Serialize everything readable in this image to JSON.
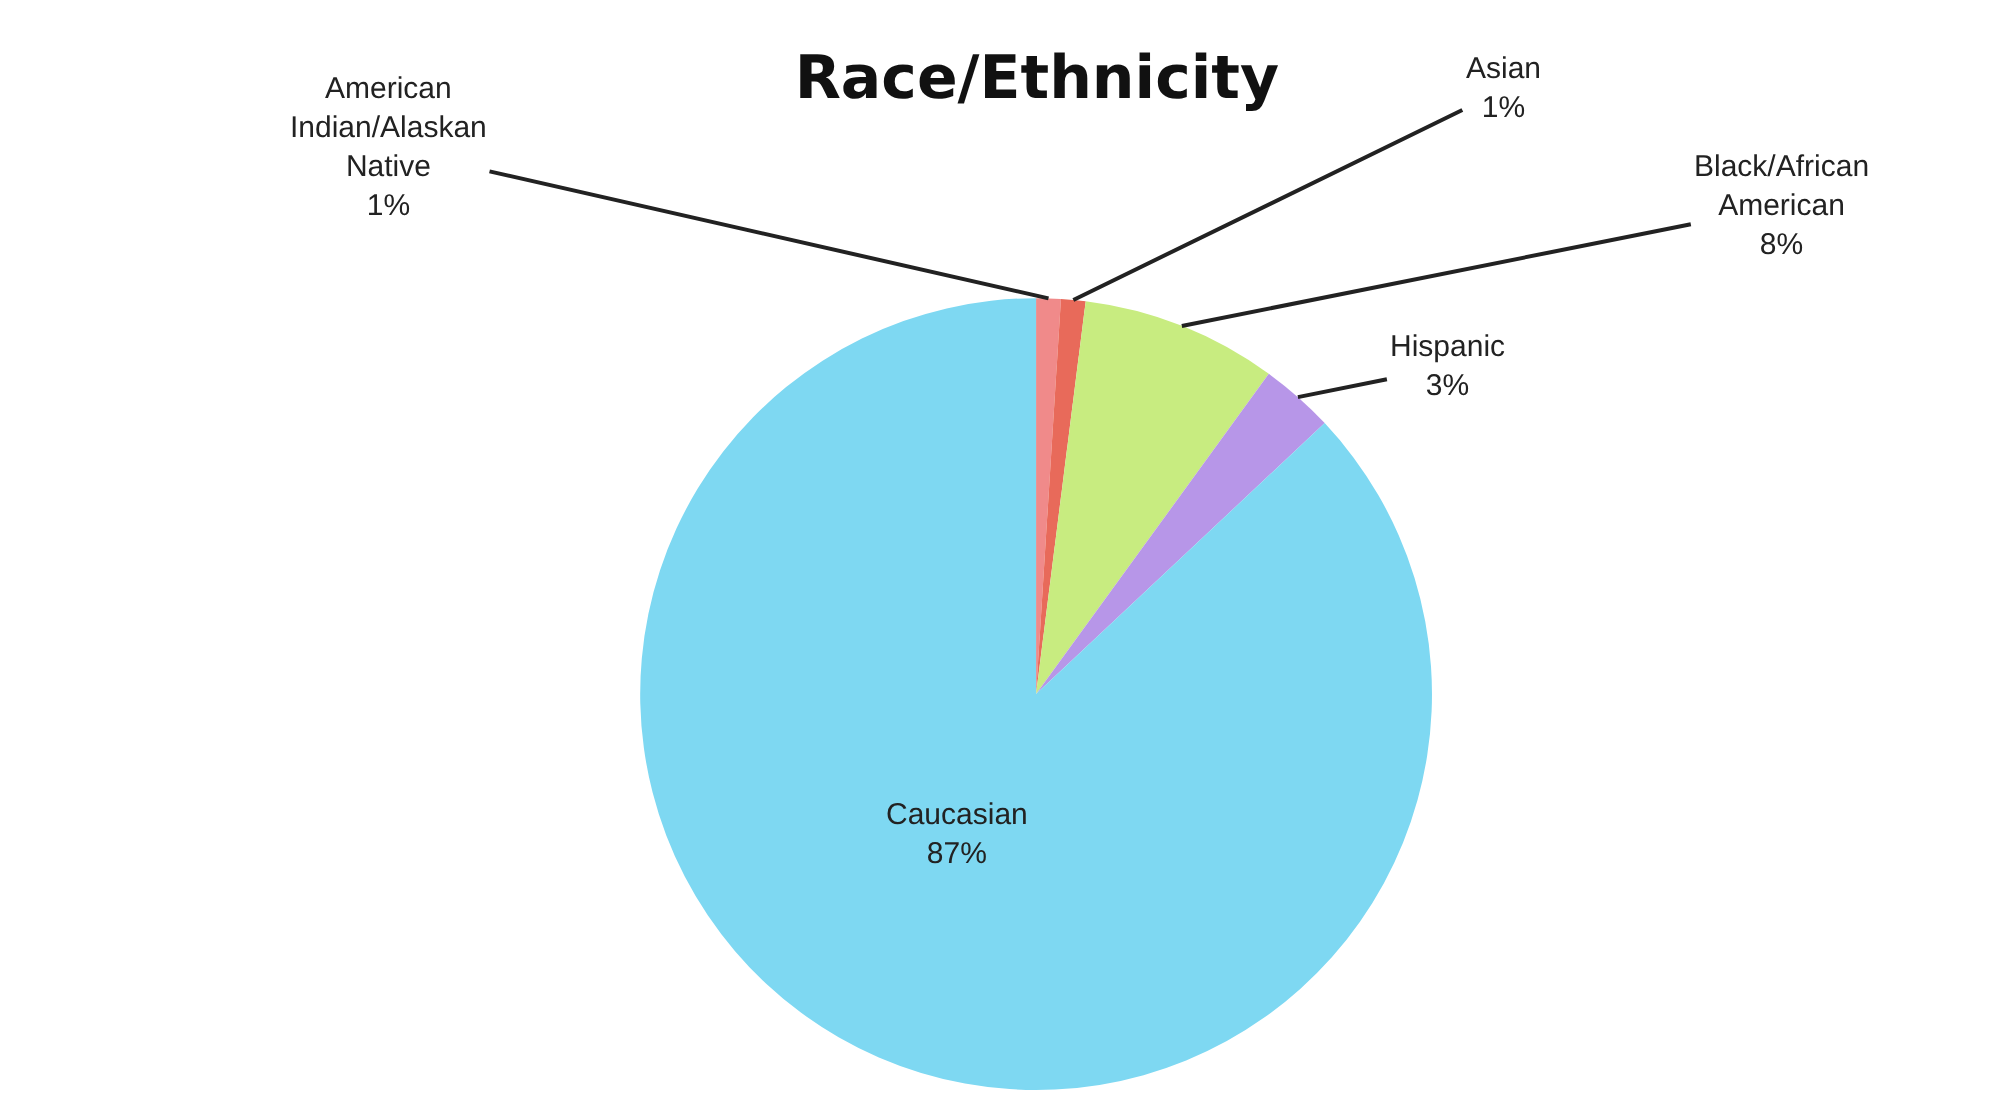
{
  "chart_data": {
    "type": "pie",
    "title": "Race/Ethnicity",
    "categories": [
      "American Indian/Alaskan Native",
      "Asian",
      "Black/African American",
      "Hispanic",
      "Caucasian"
    ],
    "values": [
      1,
      1,
      8,
      3,
      87
    ],
    "value_labels": [
      "1%",
      "1%",
      "8%",
      "3%",
      "87%"
    ],
    "colors": [
      "#f08a8a",
      "#e86a5a",
      "#c8ec80",
      "#b796e8",
      "#7ed8f2"
    ],
    "legend": false
  }
}
